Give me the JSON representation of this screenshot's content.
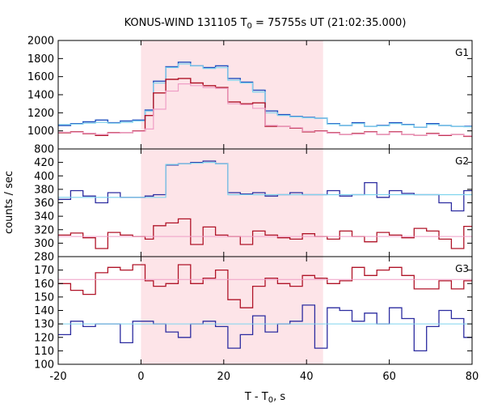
{
  "chart_data": {
    "type": "line",
    "title": "KONUS-WIND 131105 T",
    "title_sub": "0",
    "title_tail": " = 75755s UT (21:02:35.000)",
    "xlabel": "T - T",
    "xlabel_sub": "0",
    "xlabel_tail": ", s",
    "ylabel": "counts / sec",
    "xlim": [
      -20,
      80
    ],
    "xticks": [
      "-20",
      "0",
      "20",
      "40",
      "60",
      "80"
    ],
    "highlight": {
      "x0": 0,
      "x1": 44,
      "color": "#fde4e8"
    },
    "panels": [
      {
        "label": "G1",
        "ylim": [
          800,
          2000
        ],
        "yticks": [
          "800",
          "1000",
          "1200",
          "1400",
          "1600",
          "1800",
          "2000"
        ],
        "edges": [
          -20,
          -17,
          -14,
          -11,
          -8,
          -5,
          -2,
          1,
          3,
          6,
          9,
          12,
          15,
          18,
          21,
          24,
          27,
          30,
          33,
          36,
          39,
          42,
          45,
          48,
          51,
          54,
          57,
          60,
          63,
          66,
          69,
          72,
          75,
          78,
          80
        ],
        "series": [
          {
            "color": "#2050c0",
            "width": 1.4,
            "values": [
              1060,
              1080,
              1100,
              1120,
              1090,
              1110,
              1120,
              1230,
              1550,
              1710,
              1760,
              1720,
              1700,
              1720,
              1580,
              1540,
              1450,
              1220,
              1180,
              1160,
              1150,
              1140,
              1080,
              1060,
              1090,
              1050,
              1060,
              1090,
              1070,
              1040,
              1080,
              1060,
              1050,
              1050
            ]
          },
          {
            "color": "#7fd4ee",
            "width": 1.2,
            "values": [
              1070,
              1075,
              1085,
              1095,
              1085,
              1095,
              1110,
              1220,
              1530,
              1700,
              1740,
              1720,
              1690,
              1700,
              1560,
              1530,
              1430,
              1200,
              1170,
              1155,
              1145,
              1140,
              1075,
              1060,
              1080,
              1050,
              1055,
              1080,
              1065,
              1040,
              1070,
              1060,
              1050,
              1045
            ]
          },
          {
            "color": "#b01428",
            "width": 1.4,
            "values": [
              980,
              990,
              970,
              950,
              980,
              980,
              1000,
              1170,
              1420,
              1570,
              1580,
              1530,
              1500,
              1480,
              1320,
              1300,
              1310,
              1050,
              1050,
              1030,
              990,
              1000,
              980,
              960,
              970,
              990,
              960,
              990,
              960,
              950,
              970,
              950,
              960,
              940
            ]
          },
          {
            "color": "#ef9ec6",
            "width": 1.2,
            "values": [
              985,
              985,
              975,
              960,
              975,
              980,
              995,
              1020,
              1240,
              1440,
              1520,
              1500,
              1480,
              1470,
              1300,
              1290,
              1250,
              1060,
              1050,
              1035,
              995,
              995,
              975,
              960,
              965,
              985,
              960,
              985,
              960,
              950,
              965,
              955,
              960,
              945
            ]
          }
        ]
      },
      {
        "label": "G2",
        "ylim": [
          280,
          440
        ],
        "yticks": [
          "280",
          "300",
          "320",
          "340",
          "360",
          "380",
          "400",
          "420"
        ],
        "edges": [
          -20,
          -17,
          -14,
          -11,
          -8,
          -5,
          -2,
          1,
          3,
          6,
          9,
          12,
          15,
          18,
          21,
          24,
          27,
          30,
          33,
          36,
          39,
          42,
          45,
          48,
          51,
          54,
          57,
          60,
          63,
          66,
          69,
          72,
          75,
          78,
          80
        ],
        "series": [
          {
            "color": "#2c2ca0",
            "width": 1.3,
            "values": [
              365,
              378,
              370,
              360,
              375,
              368,
              368,
              370,
              372,
              416,
              418,
              420,
              422,
              418,
              375,
              373,
              375,
              370,
              372,
              375,
              372,
              372,
              378,
              370,
              372,
              390,
              368,
              378,
              374,
              372,
              372,
              360,
              348,
              378
            ]
          },
          {
            "color": "#7fd4ee",
            "width": 1.2,
            "values": [
              368,
              368,
              368,
              368,
              368,
              368,
              368,
              368,
              368,
              417,
              418,
              419,
              420,
              418,
              372,
              372,
              372,
              372,
              372,
              372,
              372,
              372,
              372,
              372,
              372,
              372,
              372,
              372,
              372,
              372,
              372,
              372,
              372,
              372
            ]
          },
          {
            "color": "#b01428",
            "width": 1.3,
            "values": [
              312,
              315,
              308,
              292,
              316,
              312,
              310,
              306,
              326,
              330,
              336,
              298,
              324,
              312,
              310,
              298,
              318,
              312,
              308,
              306,
              314,
              310,
              306,
              318,
              310,
              302,
              316,
              312,
              308,
              322,
              318,
              306,
              292,
              325
            ]
          },
          {
            "color": "#ef9ec6",
            "width": 1.0,
            "values": [
              310,
              310,
              310,
              310,
              310,
              310,
              310,
              310,
              310,
              310,
              310,
              310,
              310,
              310,
              310,
              310,
              310,
              310,
              310,
              310,
              310,
              310,
              310,
              310,
              310,
              310,
              310,
              310,
              310,
              310,
              310,
              310,
              310,
              310
            ]
          }
        ]
      },
      {
        "label": "G3",
        "ylim": [
          100,
          180
        ],
        "yticks": [
          "100",
          "110",
          "120",
          "130",
          "140",
          "150",
          "160",
          "170"
        ],
        "edges": [
          -20,
          -17,
          -14,
          -11,
          -8,
          -5,
          -2,
          1,
          3,
          6,
          9,
          12,
          15,
          18,
          21,
          24,
          27,
          30,
          33,
          36,
          39,
          42,
          45,
          48,
          51,
          54,
          57,
          60,
          63,
          66,
          69,
          72,
          75,
          78,
          80
        ],
        "series": [
          {
            "color": "#b01428",
            "width": 1.3,
            "values": [
              160,
              155,
              152,
              168,
              172,
              170,
              174,
              162,
              158,
              160,
              174,
              160,
              164,
              170,
              148,
              142,
              158,
              164,
              160,
              158,
              166,
              164,
              160,
              162,
              172,
              166,
              170,
              172,
              166,
              156,
              156,
              162,
              156,
              162
            ]
          },
          {
            "color": "#ef9ec6",
            "width": 1.0,
            "values": [
              163,
              163,
              163,
              163,
              163,
              163,
              163,
              163,
              163,
              163,
              163,
              163,
              163,
              163,
              163,
              163,
              163,
              163,
              163,
              163,
              163,
              163,
              163,
              163,
              163,
              163,
              163,
              163,
              163,
              163,
              163,
              163,
              163,
              163
            ]
          },
          {
            "color": "#2c2ca0",
            "width": 1.3,
            "values": [
              122,
              132,
              128,
              130,
              130,
              116,
              132,
              132,
              130,
              124,
              120,
              130,
              132,
              128,
              112,
              122,
              136,
              124,
              130,
              132,
              144,
              112,
              142,
              140,
              132,
              138,
              130,
              142,
              134,
              110,
              128,
              140,
              134,
              120
            ]
          },
          {
            "color": "#7fd4ee",
            "width": 1.0,
            "values": [
              130,
              130,
              130,
              130,
              130,
              130,
              130,
              130,
              130,
              130,
              130,
              130,
              130,
              130,
              130,
              130,
              130,
              130,
              130,
              130,
              130,
              130,
              130,
              130,
              130,
              130,
              130,
              130,
              130,
              130,
              130,
              130,
              130,
              130
            ]
          }
        ]
      }
    ]
  }
}
